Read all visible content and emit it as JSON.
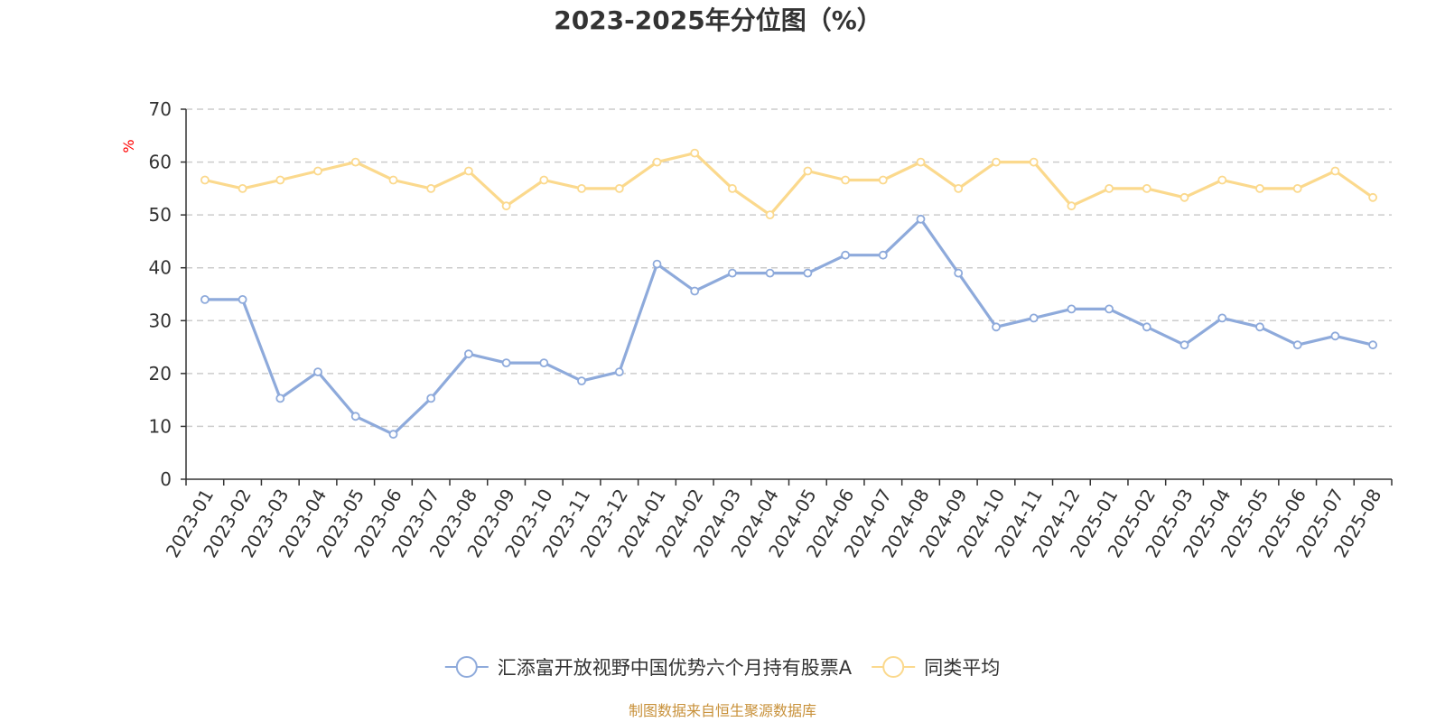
{
  "chart_data": {
    "type": "line",
    "title": "2023-2025年分位图（%）",
    "ylabel": "%",
    "xlabel": "",
    "ylim": [
      0,
      70
    ],
    "yticks": [
      0,
      10,
      20,
      30,
      40,
      50,
      60,
      70
    ],
    "grid": true,
    "legend_position": "bottom",
    "categories": [
      "2023-01",
      "2023-02",
      "2023-03",
      "2023-04",
      "2023-05",
      "2023-06",
      "2023-07",
      "2023-08",
      "2023-09",
      "2023-10",
      "2023-11",
      "2023-12",
      "2024-01",
      "2024-02",
      "2024-03",
      "2024-04",
      "2024-05",
      "2024-06",
      "2024-07",
      "2024-08",
      "2024-09",
      "2024-10",
      "2024-11",
      "2024-12",
      "2025-01",
      "2025-02",
      "2025-03",
      "2025-04",
      "2025-05",
      "2025-06",
      "2025-07",
      "2025-08"
    ],
    "series": [
      {
        "name": "汇添富开放视野中国优势六个月持有股票A",
        "color": "#8eaadb",
        "values": [
          34,
          34,
          15.3,
          20.3,
          11.9,
          8.5,
          15.3,
          23.7,
          22,
          22,
          18.6,
          20.3,
          40.7,
          35.6,
          39,
          39,
          39,
          42.4,
          42.4,
          49.2,
          39,
          28.8,
          30.5,
          32.2,
          32.2,
          28.8,
          25.4,
          30.5,
          28.8,
          25.4,
          27.1,
          25.4
        ]
      },
      {
        "name": "同类平均",
        "color": "#fbd98d",
        "values": [
          56.6,
          55,
          56.6,
          58.3,
          60,
          56.6,
          55,
          58.3,
          51.7,
          56.6,
          55,
          55,
          60,
          61.7,
          55,
          50,
          58.3,
          56.6,
          56.6,
          60,
          55,
          60,
          60,
          51.7,
          55,
          55,
          53.3,
          56.6,
          55,
          55,
          58.3,
          53.3
        ]
      }
    ]
  },
  "source": "制图数据来自恒生聚源数据库"
}
